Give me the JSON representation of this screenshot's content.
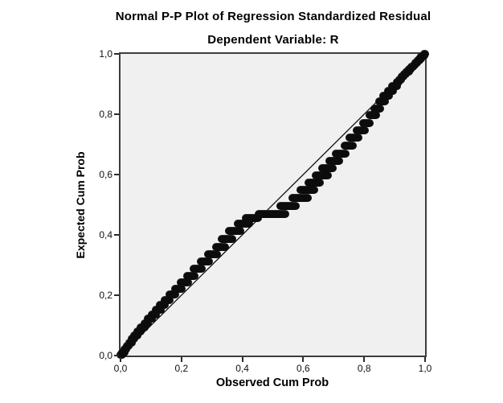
{
  "figure": {
    "title": "Normal P-P Plot of Regression Standardized Residual",
    "subtitle": "Dependent Variable: R"
  },
  "chart_data": {
    "type": "scatter",
    "title": "Normal P-P Plot of Regression Standardized Residual",
    "subtitle": "Dependent Variable: R",
    "xlabel": "Observed Cum Prob",
    "ylabel": "Expected Cum Prob",
    "xlim": [
      0,
      1
    ],
    "ylim": [
      0,
      1
    ],
    "grid": false,
    "legend": "none",
    "plot_background": "#f0f0f0",
    "frame_color": "#3d3d3d",
    "marker_color": "#0c0c0c",
    "x_tick_values": [
      0,
      0.2,
      0.4,
      0.6,
      0.8,
      1.0
    ],
    "x_tick_labels": [
      "0,0",
      "0,2",
      "0,4",
      "0,6",
      "0,8",
      "1,0"
    ],
    "y_tick_values": [
      0,
      0.2,
      0.4,
      0.6,
      0.8,
      1.0
    ],
    "y_tick_labels": [
      "0,0",
      "0,2",
      "0,4",
      "0,6",
      "0,8",
      "1,0"
    ],
    "reference_line": {
      "from": [
        0,
        0
      ],
      "to": [
        1,
        1
      ],
      "color": "#141414",
      "width": 1.3
    },
    "series": [
      {
        "name": "standardized-residual-pp-points",
        "marker": "filled-circle-runs",
        "note": "clusters are [observed_start, observed_end, expected]; runs of tied points render as pills",
        "clusters": [
          [
            0.0,
            0.004,
            0.004
          ],
          [
            0.006,
            0.012,
            0.012
          ],
          [
            0.013,
            0.019,
            0.022
          ],
          [
            0.02,
            0.027,
            0.032
          ],
          [
            0.028,
            0.036,
            0.043
          ],
          [
            0.037,
            0.045,
            0.055
          ],
          [
            0.046,
            0.055,
            0.068
          ],
          [
            0.056,
            0.066,
            0.081
          ],
          [
            0.067,
            0.078,
            0.094
          ],
          [
            0.078,
            0.09,
            0.108
          ],
          [
            0.09,
            0.103,
            0.122
          ],
          [
            0.103,
            0.117,
            0.137
          ],
          [
            0.116,
            0.131,
            0.152
          ],
          [
            0.13,
            0.146,
            0.168
          ],
          [
            0.145,
            0.162,
            0.185
          ],
          [
            0.162,
            0.18,
            0.202
          ],
          [
            0.18,
            0.2,
            0.221
          ],
          [
            0.199,
            0.221,
            0.242
          ],
          [
            0.219,
            0.243,
            0.264
          ],
          [
            0.241,
            0.266,
            0.287
          ],
          [
            0.264,
            0.291,
            0.311
          ],
          [
            0.288,
            0.317,
            0.335
          ],
          [
            0.313,
            0.344,
            0.36
          ],
          [
            0.333,
            0.366,
            0.387
          ],
          [
            0.356,
            0.392,
            0.413
          ],
          [
            0.384,
            0.421,
            0.438
          ],
          [
            0.412,
            0.452,
            0.456
          ],
          [
            0.455,
            0.54,
            0.47
          ],
          [
            0.525,
            0.575,
            0.497
          ],
          [
            0.565,
            0.614,
            0.522
          ],
          [
            0.592,
            0.635,
            0.549
          ],
          [
            0.618,
            0.655,
            0.573
          ],
          [
            0.642,
            0.682,
            0.597
          ],
          [
            0.663,
            0.697,
            0.621
          ],
          [
            0.687,
            0.717,
            0.645
          ],
          [
            0.708,
            0.738,
            0.67
          ],
          [
            0.736,
            0.763,
            0.696
          ],
          [
            0.753,
            0.781,
            0.722
          ],
          [
            0.776,
            0.801,
            0.748
          ],
          [
            0.796,
            0.818,
            0.772
          ],
          [
            0.818,
            0.839,
            0.797
          ],
          [
            0.833,
            0.851,
            0.82
          ],
          [
            0.85,
            0.869,
            0.843
          ],
          [
            0.864,
            0.881,
            0.861
          ],
          [
            0.878,
            0.894,
            0.878
          ],
          [
            0.891,
            0.907,
            0.893
          ],
          [
            0.908,
            0.914,
            0.906
          ],
          [
            0.916,
            0.922,
            0.916
          ],
          [
            0.924,
            0.93,
            0.925
          ],
          [
            0.932,
            0.938,
            0.933
          ],
          [
            0.94,
            0.946,
            0.942
          ],
          [
            0.948,
            0.953,
            0.95
          ],
          [
            0.955,
            0.96,
            0.957
          ],
          [
            0.962,
            0.967,
            0.964
          ],
          [
            0.969,
            0.974,
            0.971
          ],
          [
            0.976,
            0.981,
            0.978
          ],
          [
            0.982,
            0.987,
            0.985
          ],
          [
            0.988,
            0.992,
            0.991
          ],
          [
            0.993,
            0.997,
            0.996
          ],
          [
            0.997,
            1.0,
            1.0
          ]
        ]
      }
    ]
  }
}
